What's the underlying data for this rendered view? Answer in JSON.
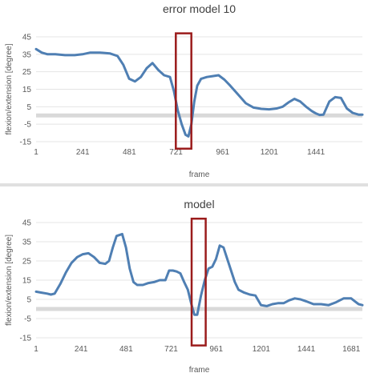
{
  "chart_data": [
    {
      "type": "line",
      "title": "error model 10",
      "xlabel": "frame",
      "ylabel": "flexion/extension [degree]",
      "x_tick_labels": [
        "1",
        "241",
        "481",
        "721",
        "961",
        "1201",
        "1441"
      ],
      "y_tick_labels": [
        "45",
        "35",
        "25",
        "15",
        "5",
        "-5",
        "-15"
      ],
      "xlim": [
        1,
        1680
      ],
      "ylim": [
        -15,
        45
      ],
      "grid": true,
      "reference_band": {
        "y": 0
      },
      "highlight_box": {
        "x_from": 720,
        "x_to": 800,
        "y_from": -19,
        "y_to": 47
      },
      "line_color": "#4f7fb3",
      "highlight_color": "#9b1c1c",
      "band_color": "#d9d9d9",
      "series": [
        {
          "x": [
            1,
            30,
            60,
            100,
            150,
            200,
            240,
            280,
            330,
            380,
            420,
            450,
            480,
            510,
            540,
            570,
            600,
            630,
            660,
            690,
            710,
            730,
            750,
            770,
            785,
            800,
            815,
            830,
            850,
            880,
            910,
            940,
            970,
            1000,
            1040,
            1080,
            1120,
            1160,
            1200,
            1240,
            1270,
            1300,
            1330,
            1360,
            1390,
            1420,
            1440,
            1460,
            1480,
            1510,
            1540,
            1570,
            1600,
            1630,
            1660,
            1680
          ],
          "y": [
            38,
            36,
            35,
            35,
            34.5,
            34.5,
            35,
            36,
            36,
            35.5,
            34,
            29,
            21,
            19.5,
            22,
            27,
            30,
            26,
            23,
            22,
            14,
            3,
            -5,
            -11,
            -12,
            -5,
            8,
            17,
            21,
            22,
            22.5,
            23,
            20.5,
            17,
            12,
            7,
            4.5,
            3.8,
            3.5,
            4,
            5,
            7.5,
            9.5,
            8,
            5,
            2.5,
            1.2,
            0.3,
            0.5,
            8,
            10.5,
            10,
            4,
            1.5,
            0.5,
            0.5
          ]
        }
      ]
    },
    {
      "type": "line",
      "title": "model",
      "xlabel": "frame",
      "ylabel": "flexion/extension [degree]",
      "x_tick_labels": [
        "1",
        "241",
        "481",
        "721",
        "961",
        "1201",
        "1441",
        "1681"
      ],
      "y_tick_labels": [
        "45",
        "35",
        "25",
        "15",
        "5",
        "-5",
        "-15"
      ],
      "xlim": [
        1,
        1740
      ],
      "ylim": [
        -15,
        45
      ],
      "grid": true,
      "reference_band": {
        "y": 0
      },
      "highlight_box": {
        "x_from": 830,
        "x_to": 905,
        "y_from": -19,
        "y_to": 47
      },
      "line_color": "#4f7fb3",
      "highlight_color": "#9b1c1c",
      "band_color": "#d9d9d9",
      "series": [
        {
          "x": [
            1,
            30,
            60,
            80,
            100,
            130,
            160,
            190,
            220,
            250,
            280,
            310,
            340,
            370,
            390,
            410,
            430,
            460,
            480,
            500,
            520,
            540,
            570,
            600,
            630,
            660,
            690,
            710,
            730,
            750,
            770,
            790,
            810,
            830,
            845,
            860,
            880,
            900,
            920,
            940,
            960,
            980,
            1000,
            1020,
            1040,
            1060,
            1080,
            1110,
            1140,
            1170,
            1200,
            1230,
            1260,
            1290,
            1320,
            1350,
            1380,
            1410,
            1440,
            1480,
            1520,
            1560,
            1600,
            1640,
            1680,
            1700,
            1720,
            1740
          ],
          "y": [
            9,
            8.5,
            8,
            7.5,
            8,
            13,
            19,
            24,
            27,
            28.5,
            29,
            27,
            24,
            23.5,
            25,
            32,
            38,
            39,
            32,
            21,
            14,
            12.5,
            12.5,
            13.5,
            14,
            15,
            15,
            20,
            20,
            19.5,
            18.5,
            14,
            10,
            2,
            -3,
            -3,
            7,
            15,
            21,
            22,
            26,
            33,
            32,
            26,
            20,
            14,
            10,
            8.5,
            7.5,
            7,
            2,
            1.5,
            2.5,
            3,
            3,
            4.5,
            5.5,
            5,
            4,
            2.5,
            2.5,
            2,
            3.5,
            5.5,
            5.5,
            4,
            2.5,
            2
          ]
        }
      ]
    }
  ]
}
